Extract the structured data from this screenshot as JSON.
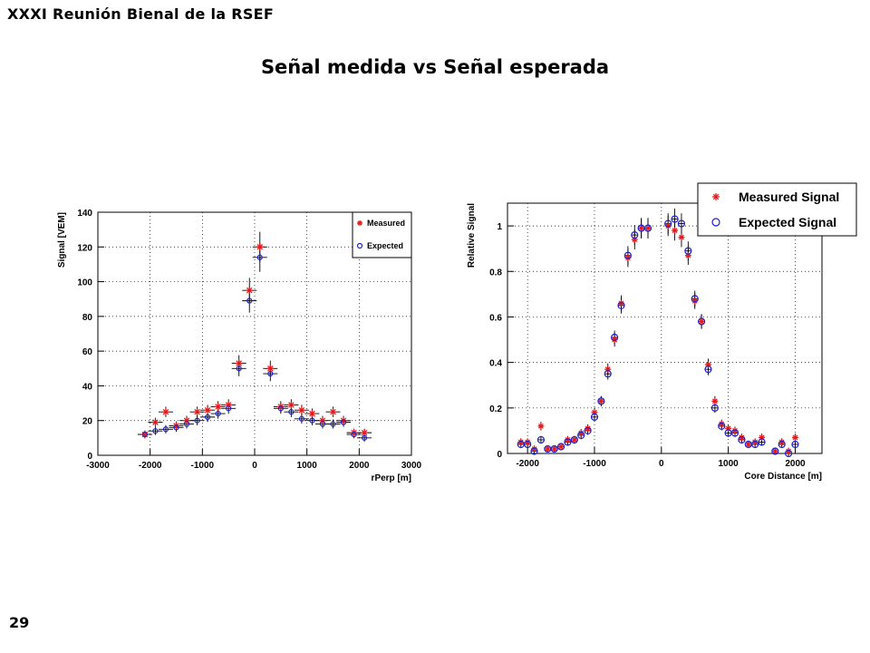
{
  "header": {
    "conference": "XXXI Reunión Bienal de la RSEF"
  },
  "slide": {
    "title": "Señal medida vs Señal esperada",
    "page_number": "29"
  },
  "colors": {
    "measured": "#e41a1c",
    "expected": "#1f1fcc",
    "axis": "#000000",
    "grid": "#000000"
  },
  "chart_data": [
    {
      "type": "scatter",
      "xlabel": "rPerp [m]",
      "ylabel": "Signal [VEM]",
      "xlim": [
        -3000,
        3000
      ],
      "ylim": [
        0,
        140
      ],
      "x_ticks": [
        "-3000",
        "-2000",
        "-1000",
        "0",
        "1000",
        "2000",
        "3000"
      ],
      "y_ticks": [
        "0",
        "20",
        "40",
        "60",
        "80",
        "100",
        "120",
        "140"
      ],
      "grid": true,
      "legend_position": "top-right",
      "series": [
        {
          "name": "Measured",
          "marker": "star",
          "color": "#e41a1c",
          "points": [
            [
              -2100,
              12
            ],
            [
              -1900,
              19
            ],
            [
              -1700,
              25
            ],
            [
              -1500,
              17
            ],
            [
              -1300,
              20
            ],
            [
              -1100,
              25
            ],
            [
              -900,
              26
            ],
            [
              -700,
              28
            ],
            [
              -500,
              29
            ],
            [
              -300,
              53
            ],
            [
              -100,
              95
            ],
            [
              100,
              120
            ],
            [
              300,
              50
            ],
            [
              500,
              28
            ],
            [
              700,
              29
            ],
            [
              900,
              26
            ],
            [
              1100,
              24
            ],
            [
              1300,
              20
            ],
            [
              1500,
              25
            ],
            [
              1700,
              20
            ],
            [
              1900,
              13
            ],
            [
              2100,
              13
            ]
          ]
        },
        {
          "name": "Expected",
          "marker": "circle",
          "color": "#1f1fcc",
          "points": [
            [
              -2100,
              12
            ],
            [
              -1900,
              14
            ],
            [
              -1700,
              15
            ],
            [
              -1500,
              16
            ],
            [
              -1300,
              18
            ],
            [
              -1100,
              20
            ],
            [
              -900,
              22
            ],
            [
              -700,
              24
            ],
            [
              -500,
              27
            ],
            [
              -300,
              50
            ],
            [
              -100,
              89
            ],
            [
              100,
              114
            ],
            [
              300,
              47
            ],
            [
              500,
              27
            ],
            [
              700,
              25
            ],
            [
              900,
              21
            ],
            [
              1100,
              20
            ],
            [
              1300,
              18
            ],
            [
              1500,
              18
            ],
            [
              1700,
              19
            ],
            [
              1900,
              12
            ],
            [
              2100,
              10
            ]
          ]
        }
      ]
    },
    {
      "type": "scatter",
      "xlabel": "Core Distance [m]",
      "ylabel": "Relative Signal",
      "xlim": [
        -2300,
        2400
      ],
      "ylim": [
        0,
        1.1
      ],
      "x_ticks": [
        "-2000",
        "-1000",
        "0",
        "1000",
        "2000"
      ],
      "y_ticks": [
        "0",
        "0.2",
        "0.4",
        "0.6",
        "0.8",
        "1"
      ],
      "grid": true,
      "legend_position": "top-right",
      "series": [
        {
          "name": "Measured Signal",
          "marker": "star",
          "color": "#e41a1c",
          "points": [
            [
              -2100,
              0.05
            ],
            [
              -2000,
              0.05
            ],
            [
              -1900,
              0.02
            ],
            [
              -1800,
              0.12
            ],
            [
              -1700,
              0.02
            ],
            [
              -1600,
              0.02
            ],
            [
              -1500,
              0.03
            ],
            [
              -1400,
              0.06
            ],
            [
              -1300,
              0.06
            ],
            [
              -1200,
              0.09
            ],
            [
              -1100,
              0.11
            ],
            [
              -1000,
              0.18
            ],
            [
              -900,
              0.23
            ],
            [
              -800,
              0.37
            ],
            [
              -700,
              0.5
            ],
            [
              -600,
              0.66
            ],
            [
              -500,
              0.86
            ],
            [
              -400,
              0.94
            ],
            [
              -300,
              0.99
            ],
            [
              -200,
              0.99
            ],
            [
              100,
              1.0
            ],
            [
              200,
              0.98
            ],
            [
              300,
              0.95
            ],
            [
              400,
              0.87
            ],
            [
              500,
              0.67
            ],
            [
              600,
              0.58
            ],
            [
              700,
              0.39
            ],
            [
              800,
              0.23
            ],
            [
              900,
              0.13
            ],
            [
              1000,
              0.11
            ],
            [
              1100,
              0.1
            ],
            [
              1200,
              0.07
            ],
            [
              1300,
              0.04
            ],
            [
              1400,
              0.05
            ],
            [
              1500,
              0.07
            ],
            [
              1700,
              0.01
            ],
            [
              1800,
              0.05
            ],
            [
              1900,
              0.01
            ],
            [
              2000,
              0.07
            ]
          ]
        },
        {
          "name": "Expected Signal",
          "marker": "circle",
          "color": "#1f1fcc",
          "points": [
            [
              -2100,
              0.04
            ],
            [
              -2000,
              0.04
            ],
            [
              -1900,
              0.01
            ],
            [
              -1800,
              0.06
            ],
            [
              -1700,
              0.02
            ],
            [
              -1600,
              0.02
            ],
            [
              -1500,
              0.03
            ],
            [
              -1400,
              0.05
            ],
            [
              -1300,
              0.06
            ],
            [
              -1200,
              0.08
            ],
            [
              -1100,
              0.1
            ],
            [
              -1000,
              0.16
            ],
            [
              -900,
              0.23
            ],
            [
              -800,
              0.35
            ],
            [
              -700,
              0.51
            ],
            [
              -600,
              0.65
            ],
            [
              -500,
              0.87
            ],
            [
              -400,
              0.96
            ],
            [
              -300,
              0.99
            ],
            [
              -200,
              0.99
            ],
            [
              100,
              1.01
            ],
            [
              200,
              1.03
            ],
            [
              300,
              1.01
            ],
            [
              400,
              0.89
            ],
            [
              500,
              0.68
            ],
            [
              600,
              0.58
            ],
            [
              700,
              0.37
            ],
            [
              800,
              0.2
            ],
            [
              900,
              0.12
            ],
            [
              1000,
              0.09
            ],
            [
              1100,
              0.09
            ],
            [
              1200,
              0.06
            ],
            [
              1300,
              0.04
            ],
            [
              1400,
              0.04
            ],
            [
              1500,
              0.05
            ],
            [
              1700,
              0.01
            ],
            [
              1800,
              0.04
            ],
            [
              1900,
              0.0
            ],
            [
              2000,
              0.04
            ]
          ]
        }
      ]
    }
  ]
}
